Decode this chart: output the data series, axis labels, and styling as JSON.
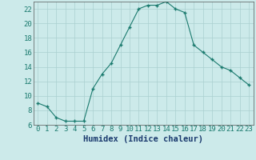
{
  "x": [
    0,
    1,
    2,
    3,
    4,
    5,
    6,
    7,
    8,
    9,
    10,
    11,
    12,
    13,
    14,
    15,
    16,
    17,
    18,
    19,
    20,
    21,
    22,
    23
  ],
  "y": [
    9.0,
    8.5,
    7.0,
    6.5,
    6.5,
    6.5,
    11.0,
    13.0,
    14.5,
    17.0,
    19.5,
    22.0,
    22.5,
    22.5,
    23.0,
    22.0,
    21.5,
    17.0,
    16.0,
    15.0,
    14.0,
    13.5,
    12.5,
    11.5
  ],
  "xlabel": "Humidex (Indice chaleur)",
  "xlim": [
    -0.5,
    23.5
  ],
  "ylim": [
    6,
    23
  ],
  "yticks": [
    6,
    8,
    10,
    12,
    14,
    16,
    18,
    20,
    22
  ],
  "xticks": [
    0,
    1,
    2,
    3,
    4,
    5,
    6,
    7,
    8,
    9,
    10,
    11,
    12,
    13,
    14,
    15,
    16,
    17,
    18,
    19,
    20,
    21,
    22,
    23
  ],
  "line_color": "#1a7a6e",
  "marker": "+",
  "marker_color": "#1a7a6e",
  "bg_color": "#cceaea",
  "grid_color": "#aacfcf",
  "tick_label_fontsize": 6.5,
  "xlabel_fontsize": 7.5
}
